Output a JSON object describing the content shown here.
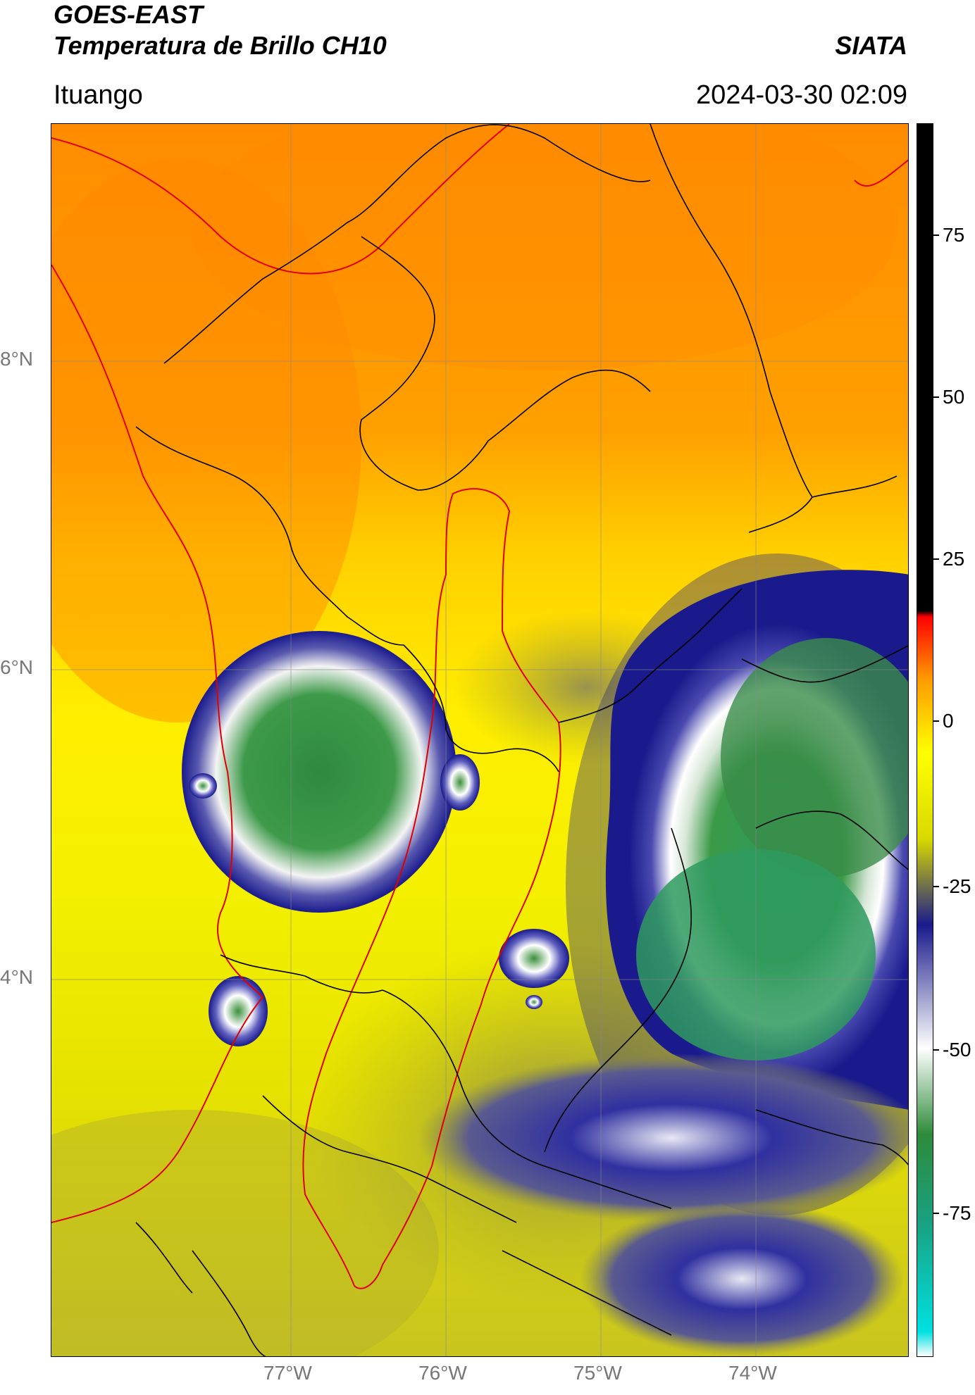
{
  "header": {
    "satellite": "GOES-EAST",
    "product": "Temperatura de Brillo CH10",
    "organization": "SIATA",
    "location": "Ituango",
    "datetime": "2024-03-30 02:09"
  },
  "map": {
    "lat_labels": [
      "8°N",
      "6°N",
      "4°N"
    ],
    "lon_labels": [
      "77°W",
      "76°W",
      "75°W",
      "74°W"
    ],
    "grid": true
  },
  "colorbar": {
    "ticks": [
      "75",
      "50",
      "25",
      "0",
      "-25",
      "-50",
      "-75"
    ],
    "range": [
      -95,
      90
    ],
    "colors": [
      "#ffffff",
      "#00e0e0",
      "#1aa080",
      "#2e8b3a",
      "#ffffff",
      "#1a1a8c",
      "#d9d900",
      "#ffff00",
      "#ff9900",
      "#ff0000",
      "#000000"
    ]
  }
}
